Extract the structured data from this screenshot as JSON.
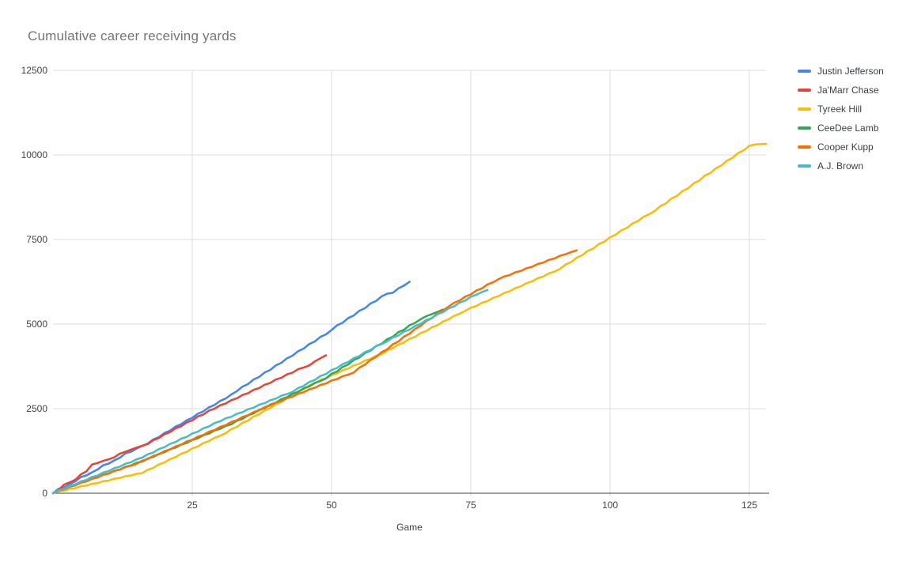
{
  "title": "Cumulative career receiving yards",
  "chart_data": {
    "type": "line",
    "title": "Cumulative career receiving yards",
    "xlabel": "Game",
    "ylabel": "",
    "xlim": [
      0,
      128
    ],
    "ylim": [
      0,
      12500
    ],
    "xticks": [
      "25",
      "50",
      "75",
      "100",
      "125"
    ],
    "xtick_values": [
      25,
      50,
      75,
      100,
      125
    ],
    "yticks": [
      "0",
      "2500",
      "5000",
      "7500",
      "10000",
      "12500"
    ],
    "ytick_values": [
      0,
      2500,
      5000,
      7500,
      10000,
      12500
    ],
    "grid": true,
    "legend_position": "right",
    "x_unit": "career game number (values are cumulative receiving yards, first entry = game 0)",
    "colors": {
      "grid": "#dadce0",
      "axis": "#424242",
      "tick_text": "#424242",
      "title_text": "#757575",
      "legend_text": "#3c4043"
    },
    "series": [
      {
        "name": "Justin Jefferson",
        "color": "#4285F4",
        "cumulative_yards": [
          0,
          130,
          175,
          270,
          350,
          480,
          525,
          620,
          700,
          830,
          875,
          970,
          1050,
          1180,
          1225,
          1320,
          1400,
          1470,
          1590,
          1660,
          1780,
          1850,
          1970,
          2040,
          2160,
          2230,
          2350,
          2420,
          2540,
          2610,
          2730,
          2800,
          2920,
          3016,
          3151,
          3226,
          3361,
          3436,
          3571,
          3646,
          3781,
          3856,
          3991,
          4066,
          4201,
          4276,
          4411,
          4486,
          4621,
          4696,
          4825,
          4965,
          5040,
          5180,
          5255,
          5395,
          5470,
          5610,
          5685,
          5819,
          5899,
          5924,
          6057,
          6138,
          6250
        ]
      },
      {
        "name": "Ja'Marr Chase",
        "color": "#EA4335",
        "cumulative_yards": [
          0,
          101,
          256,
          322,
          400,
          558,
          648,
          848,
          896,
          956,
          1003,
          1063,
          1173,
          1224,
          1290,
          1350,
          1405,
          1455,
          1570,
          1630,
          1745,
          1805,
          1920,
          1980,
          2095,
          2155,
          2270,
          2330,
          2442,
          2501,
          2601,
          2653,
          2753,
          2805,
          2905,
          2957,
          3057,
          3109,
          3209,
          3261,
          3361,
          3413,
          3513,
          3565,
          3665,
          3717,
          3779,
          3897,
          3990,
          4077
        ]
      },
      {
        "name": "Tyreek Hill",
        "color": "#FBBC04",
        "cumulative_yards": [
          0,
          55,
          75,
          130,
          150,
          205,
          225,
          280,
          300,
          355,
          375,
          430,
          450,
          505,
          525,
          575,
          593,
          693,
          751,
          851,
          909,
          1009,
          1067,
          1167,
          1225,
          1325,
          1383,
          1483,
          1541,
          1641,
          1699,
          1776,
          1896,
          1961,
          2081,
          2146,
          2266,
          2331,
          2451,
          2516,
          2636,
          2701,
          2821,
          2886,
          3005,
          3070,
          3190,
          3255,
          3350,
          3398,
          3493,
          3541,
          3636,
          3684,
          3779,
          3827,
          3922,
          3970,
          4065,
          4115,
          4225,
          4285,
          4395,
          4455,
          4565,
          4625,
          4735,
          4795,
          4905,
          4965,
          5075,
          5135,
          5245,
          5305,
          5391,
          5486,
          5536,
          5631,
          5681,
          5776,
          5826,
          5921,
          5971,
          6066,
          6116,
          6211,
          6261,
          6356,
          6406,
          6501,
          6551,
          6630,
          6760,
          6832,
          6962,
          7034,
          7164,
          7236,
          7366,
          7438,
          7568,
          7640,
          7770,
          7842,
          7972,
          8044,
          8174,
          8246,
          8340,
          8485,
          8565,
          8710,
          8790,
          8935,
          9015,
          9160,
          9240,
          9385,
          9465,
          9610,
          9690,
          9835,
          9915,
          10059,
          10139,
          10269,
          10309,
          10317,
          10330
        ]
      },
      {
        "name": "CeeDee Lamb",
        "color": "#34A853",
        "cumulative_yards": [
          0,
          80,
          117,
          197,
          234,
          314,
          351,
          431,
          468,
          548,
          585,
          665,
          702,
          782,
          819,
          899,
          935,
          1025,
          1073,
          1163,
          1211,
          1301,
          1349,
          1439,
          1487,
          1577,
          1625,
          1715,
          1763,
          1853,
          1901,
          1989,
          2037,
          2142,
          2197,
          2302,
          2357,
          2462,
          2517,
          2622,
          2677,
          2782,
          2837,
          2942,
          2997,
          3102,
          3157,
          3262,
          3317,
          3396,
          3531,
          3601,
          3736,
          3806,
          3941,
          4011,
          4146,
          4216,
          4351,
          4421,
          4556,
          4626,
          4761,
          4831,
          4966,
          5036,
          5145,
          5234,
          5295,
          5360,
          5430
        ]
      },
      {
        "name": "Cooper Kupp",
        "color": "#FF6D01",
        "cumulative_yards": [
          0,
          78,
          116,
          194,
          232,
          310,
          348,
          426,
          464,
          542,
          580,
          658,
          696,
          774,
          812,
          869,
          961,
          1011,
          1103,
          1153,
          1245,
          1295,
          1385,
          1435,
          1530,
          1580,
          1675,
          1725,
          1820,
          1870,
          1965,
          2015,
          2110,
          2160,
          2255,
          2305,
          2400,
          2450,
          2545,
          2596,
          2681,
          2726,
          2811,
          2856,
          2941,
          2986,
          3071,
          3116,
          3201,
          3246,
          3331,
          3376,
          3461,
          3506,
          3570,
          3715,
          3799,
          3944,
          4028,
          4173,
          4257,
          4402,
          4486,
          4631,
          4715,
          4860,
          4944,
          5089,
          5173,
          5318,
          5402,
          5517,
          5632,
          5697,
          5812,
          5877,
          5992,
          6057,
          6172,
          6237,
          6329,
          6409,
          6451,
          6531,
          6573,
          6653,
          6695,
          6775,
          6817,
          6897,
          6939,
          7019,
          7066,
          7126,
          7180
        ]
      },
      {
        "name": "A.J. Brown",
        "color": "#46BDC6",
        "cumulative_yards": [
          0,
          88,
          131,
          219,
          262,
          350,
          393,
          481,
          524,
          612,
          655,
          743,
          786,
          874,
          917,
          1005,
          1051,
          1151,
          1205,
          1305,
          1359,
          1459,
          1513,
          1613,
          1667,
          1767,
          1821,
          1921,
          1975,
          2075,
          2126,
          2214,
          2260,
          2348,
          2394,
          2482,
          2528,
          2616,
          2662,
          2750,
          2796,
          2884,
          2930,
          2995,
          3110,
          3172,
          3287,
          3349,
          3464,
          3526,
          3641,
          3703,
          3818,
          3880,
          3995,
          4057,
          4172,
          4234,
          4349,
          4411,
          4491,
          4603,
          4663,
          4775,
          4835,
          4947,
          5007,
          5119,
          5179,
          5291,
          5351,
          5463,
          5523,
          5635,
          5695,
          5807,
          5867,
          5947,
          6010
        ]
      }
    ]
  }
}
